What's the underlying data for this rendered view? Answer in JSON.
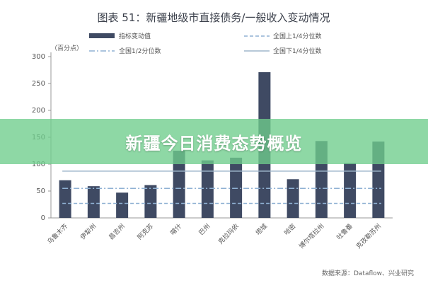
{
  "chart_data": {
    "type": "bar",
    "title": "图表 51：新疆地级市直接债务/一般收入变动情况",
    "unit_label": "（百分点）",
    "categories": [
      "乌鲁木齐",
      "伊犁州",
      "昌吉州",
      "阿克苏",
      "喀什",
      "巴州",
      "克拉玛依",
      "塔城",
      "哈密",
      "博尔塔拉州",
      "吐鲁番",
      "克孜勒苏州"
    ],
    "series": [
      {
        "name": "指标变动值",
        "type": "bar",
        "values": [
          70,
          59,
          47,
          61,
          125,
          107,
          112,
          271,
          72,
          143,
          102,
          142
        ]
      },
      {
        "name": "全国上1/4分位数",
        "type": "line",
        "style": "dashed",
        "value": 27
      },
      {
        "name": "全国1/2分位数",
        "type": "line",
        "style": "dashdot",
        "value": 55
      },
      {
        "name": "全国下1/4分位数",
        "type": "line",
        "style": "solid",
        "value": 87
      }
    ],
    "yticks": [
      0,
      50,
      100,
      150,
      200,
      250,
      300
    ],
    "ylim": [
      0,
      300
    ],
    "source": "数据来源：Dataflow、兴业研究",
    "colors": {
      "bar": "#3f4a63",
      "q1": "#8fb1d3",
      "median": "#8fb1d3",
      "q3": "#9fb7cc"
    },
    "legend_position": "top"
  },
  "banner": {
    "text": "新疆今日消费态势概览"
  }
}
